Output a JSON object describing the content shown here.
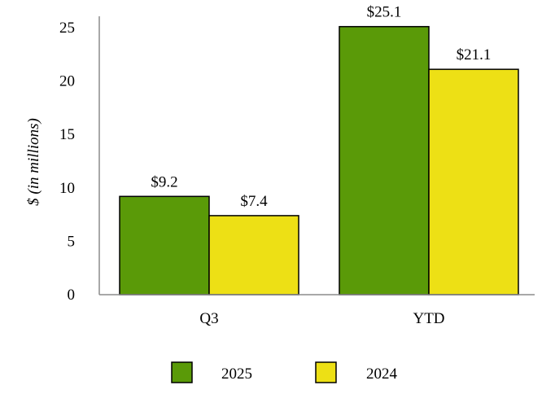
{
  "chart_data": {
    "type": "bar",
    "categories": [
      "Q3",
      "YTD"
    ],
    "series": [
      {
        "name": "2025",
        "values": [
          9.2,
          25.1
        ],
        "labels": [
          "$9.2",
          "$25.1"
        ],
        "color": "#5a9a08"
      },
      {
        "name": "2024",
        "values": [
          7.4,
          21.1
        ],
        "labels": [
          "$7.4",
          "$21.1"
        ],
        "color": "#ede015"
      }
    ],
    "ylabel": "$ (in millions)",
    "ylim": [
      0,
      25
    ],
    "yticks": [
      0,
      5,
      10,
      15,
      20,
      25
    ],
    "grid": false,
    "legend": "bottom-center"
  }
}
